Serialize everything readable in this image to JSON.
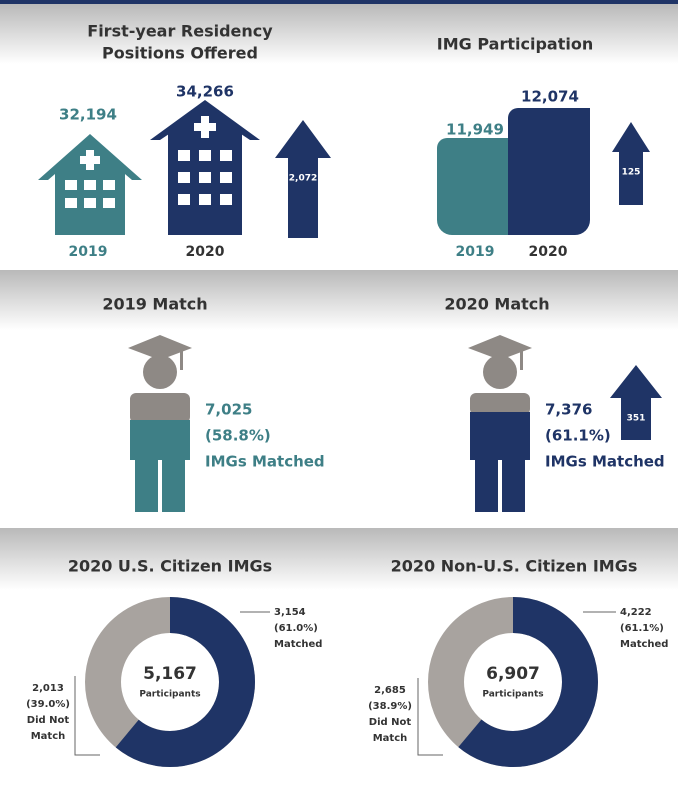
{
  "positions": {
    "title_lines": [
      "First-year Residency",
      "Positions Offered"
    ],
    "y2019": {
      "value": "32,194",
      "year": "2019"
    },
    "y2020": {
      "value": "34,266",
      "year": "2020"
    },
    "increase": "2,072"
  },
  "participation": {
    "title": "IMG Participation",
    "y2019": {
      "value": "11,949",
      "year": "2019"
    },
    "y2020": {
      "value": "12,074",
      "year": "2020"
    },
    "increase": "125"
  },
  "match2019": {
    "title": "2019 Match",
    "lines": [
      "7,025",
      "(58.8%)",
      "IMGs Matched"
    ]
  },
  "match2020": {
    "title": "2020 Match",
    "lines": [
      "7,376",
      "(61.1%)",
      "IMGs Matched"
    ],
    "increase": "351"
  },
  "us_citizen": {
    "title": "2020 U.S. Citizen IMGs",
    "total": "5,167",
    "total_label": "Participants",
    "matched": [
      "3,154",
      "(61.0%)",
      "Matched"
    ],
    "not_matched": [
      "2,013",
      "(39.0%)",
      "Did Not",
      "Match"
    ]
  },
  "non_us_citizen": {
    "title": "2020 Non-U.S. Citizen IMGs",
    "total": "6,907",
    "total_label": "Participants",
    "matched": [
      "4,222",
      "(61.1%)",
      "Matched"
    ],
    "not_matched": [
      "2,685",
      "(38.9%)",
      "Did Not",
      "Match"
    ]
  }
}
